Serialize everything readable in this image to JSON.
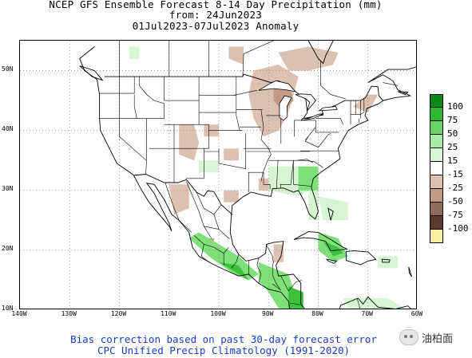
{
  "header": {
    "title": "NCEP GFS Ensemble Forecast 8-14 Day Precipitation (mm)",
    "from_line": "from: 24Jun2023",
    "period_line": "01Jul2023-07Jul2023 Anomaly"
  },
  "map": {
    "lat_labels": [
      "50N",
      "40N",
      "30N",
      "20N",
      "10N"
    ],
    "lon_labels": [
      "140W",
      "130W",
      "120W",
      "110W",
      "100W",
      "90W",
      "80W",
      "70W",
      "60W"
    ],
    "colors": {
      "wet_light": "#d6f5d3",
      "wet_medium": "#7fe07a",
      "wet_strong": "#3cc23c",
      "dry_light": "#dcc0b0",
      "dry_medium": "#c49a85",
      "border": "#000000",
      "grid": "#888888"
    }
  },
  "chart_data": {
    "type": "heatmap",
    "title": "NCEP GFS Ensemble Forecast 8-14 Day Precipitation (mm)",
    "extent": {
      "lon": [
        -140,
        -60
      ],
      "lat": [
        10,
        55
      ]
    },
    "anomaly_regions": [
      {
        "kind": "dry",
        "level": "-15 to -25",
        "lon": [
          -92,
          -86
        ],
        "lat": [
          38,
          50
        ]
      },
      {
        "kind": "dry",
        "level": "-15 to -25",
        "lon": [
          -90,
          -78
        ],
        "lat": [
          47,
          53
        ]
      },
      {
        "kind": "dry",
        "level": "-15 to -25",
        "lon": [
          -108,
          -103
        ],
        "lat": [
          35,
          41
        ]
      },
      {
        "kind": "dry",
        "level": "-15 to -25",
        "lon": [
          -110,
          -106
        ],
        "lat": [
          26,
          31
        ]
      },
      {
        "kind": "dry",
        "level": "-15 to -25",
        "lon": [
          -86,
          -82
        ],
        "lat": [
          42,
          46
        ]
      },
      {
        "kind": "wet",
        "level": "15 to 50",
        "lon": [
          -84,
          -80
        ],
        "lat": [
          30,
          34
        ]
      },
      {
        "kind": "wet",
        "level": "15 to 50",
        "lon": [
          -106,
          -92
        ],
        "lat": [
          14,
          22
        ]
      },
      {
        "kind": "wet",
        "level": "25 to 75",
        "lon": [
          -80,
          -74
        ],
        "lat": [
          18,
          23
        ]
      },
      {
        "kind": "wet",
        "level": "15 to 50",
        "lon": [
          -92,
          -82
        ],
        "lat": [
          9,
          17
        ]
      }
    ]
  },
  "legend": {
    "items": [
      {
        "label": "100",
        "color": "#0a8a12"
      },
      {
        "label": "75",
        "color": "#2fb82f"
      },
      {
        "label": "50",
        "color": "#6ad66a"
      },
      {
        "label": "25",
        "color": "#a8eba4"
      },
      {
        "label": "15",
        "color": "#d6f5d3"
      },
      {
        "label": "-15",
        "color": "#ffffff"
      },
      {
        "label": "-25",
        "color": "#dcc0b0"
      },
      {
        "label": "-50",
        "color": "#c49a85"
      },
      {
        "label": "-75",
        "color": "#8f6a58"
      },
      {
        "label": "-100",
        "color": "#5a3a2e"
      },
      {
        "label": "",
        "color": "#f7f0a0"
      }
    ]
  },
  "footer": {
    "line1": "Bias correction based on past 30-day forecast error",
    "line2": "CPC Unified Precip Climatology (1991-2020)"
  },
  "watermark": {
    "text": "油柏面"
  }
}
